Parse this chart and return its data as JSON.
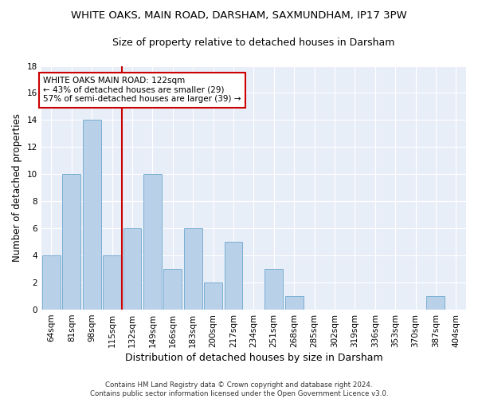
{
  "title": "WHITE OAKS, MAIN ROAD, DARSHAM, SAXMUNDHAM, IP17 3PW",
  "subtitle": "Size of property relative to detached houses in Darsham",
  "xlabel": "Distribution of detached houses by size in Darsham",
  "ylabel": "Number of detached properties",
  "categories": [
    "64sqm",
    "81sqm",
    "98sqm",
    "115sqm",
    "132sqm",
    "149sqm",
    "166sqm",
    "183sqm",
    "200sqm",
    "217sqm",
    "234sqm",
    "251sqm",
    "268sqm",
    "285sqm",
    "302sqm",
    "319sqm",
    "336sqm",
    "353sqm",
    "370sqm",
    "387sqm",
    "404sqm"
  ],
  "values": [
    4,
    10,
    14,
    4,
    6,
    10,
    3,
    6,
    2,
    5,
    0,
    3,
    1,
    0,
    0,
    0,
    0,
    0,
    0,
    1,
    0
  ],
  "bar_color": "#b8d0e8",
  "bar_edge_color": "#7aafd4",
  "background_color": "#e8eef8",
  "grid_color": "#ffffff",
  "vline_x": 3.5,
  "vline_color": "#cc0000",
  "annotation_text": "WHITE OAKS MAIN ROAD: 122sqm\n← 43% of detached houses are smaller (29)\n57% of semi-detached houses are larger (39) →",
  "annotation_box_color": "#ffffff",
  "annotation_box_edge": "#cc0000",
  "ylim": [
    0,
    18
  ],
  "yticks": [
    0,
    2,
    4,
    6,
    8,
    10,
    12,
    14,
    16,
    18
  ],
  "fig_bg": "#ffffff",
  "footer": "Contains HM Land Registry data © Crown copyright and database right 2024.\nContains public sector information licensed under the Open Government Licence v3.0.",
  "title_fontsize": 9.5,
  "subtitle_fontsize": 9.0,
  "ylabel_fontsize": 8.5,
  "xlabel_fontsize": 9.0,
  "tick_fontsize": 7.5,
  "annot_fontsize": 7.5,
  "footer_fontsize": 6.2
}
